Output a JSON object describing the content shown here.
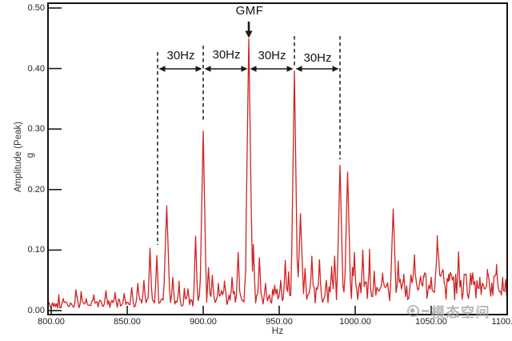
{
  "figure": {
    "axes": {
      "x": {
        "title": "Hz",
        "tick_labels": [
          "800.00",
          "850.00",
          "900.00",
          "950.00",
          "1000.00",
          "1050.00",
          "1100.00"
        ],
        "ticks_hz": [
          800,
          850,
          900,
          950,
          1000,
          1050,
          1100
        ],
        "min_hz": 798,
        "max_hz": 1100
      },
      "y": {
        "title": "Amplitude (Peak)",
        "unit": "g",
        "tick_labels": [
          "0.00",
          "0.10",
          "0.20",
          "0.30",
          "0.40",
          "0.50"
        ],
        "ticks": [
          0,
          0.1,
          0.2,
          0.3,
          0.4,
          0.5
        ],
        "min": 0,
        "max": 0.5
      }
    },
    "annotations": {
      "gmf_label": "GMF",
      "gmf_hz": 930,
      "sideband_hz": [
        870,
        900,
        960,
        990
      ],
      "spacing_labels": [
        "30Hz",
        "30Hz",
        "30Hz",
        "30Hz"
      ],
      "spacing_hz": 30
    },
    "watermark": {
      "text": "模态空间"
    },
    "colors": {
      "line": "#cf2323",
      "annotation": "#1a1a1a",
      "watermark": "#8c8c8c"
    }
  },
  "chart_data": {
    "type": "line",
    "title": "",
    "xlabel": "Hz",
    "ylabel": "Amplitude (Peak)",
    "y_unit": "g",
    "xlim": [
      798,
      1100
    ],
    "ylim": [
      0,
      0.5
    ],
    "grid": false,
    "legend": "none",
    "description": "Vibration spectrum: gear mesh frequency (GMF) peak at 930 Hz of 0.45 g with sideband peaks spaced 30 Hz apart (870, 900, 960, 990 Hz)",
    "gmf_hz": 930,
    "sideband_spacing_hz": 30,
    "peaks_hz_amplitude": [
      [
        808,
        0.02
      ],
      [
        817,
        0.024
      ],
      [
        823,
        0.02
      ],
      [
        828,
        0.026
      ],
      [
        836,
        0.033
      ],
      [
        842,
        0.03
      ],
      [
        848,
        0.028
      ],
      [
        853,
        0.038
      ],
      [
        857,
        0.045
      ],
      [
        861,
        0.05
      ],
      [
        865,
        0.103
      ],
      [
        869.5,
        0.091
      ],
      [
        876,
        0.173
      ],
      [
        880,
        0.055
      ],
      [
        884,
        0.04
      ],
      [
        890,
        0.036
      ],
      [
        895,
        0.123
      ],
      [
        900,
        0.297
      ],
      [
        903.5,
        0.071
      ],
      [
        906,
        0.058
      ],
      [
        910,
        0.045
      ],
      [
        914,
        0.049
      ],
      [
        919,
        0.055
      ],
      [
        923,
        0.096
      ],
      [
        928,
        0.071
      ],
      [
        930,
        0.449
      ],
      [
        933,
        0.109
      ],
      [
        937,
        0.087
      ],
      [
        941,
        0.045
      ],
      [
        947,
        0.042
      ],
      [
        951,
        0.05
      ],
      [
        954,
        0.083
      ],
      [
        960,
        0.396
      ],
      [
        964,
        0.16
      ],
      [
        967,
        0.07
      ],
      [
        971.5,
        0.09
      ],
      [
        976.5,
        0.084
      ],
      [
        981,
        0.05
      ],
      [
        984.5,
        0.073
      ],
      [
        986.5,
        0.09
      ],
      [
        990,
        0.24
      ],
      [
        995,
        0.229
      ],
      [
        999.5,
        0.096
      ],
      [
        1005,
        0.1
      ],
      [
        1009,
        0.06
      ],
      [
        1012.5,
        0.065
      ],
      [
        1018,
        0.062
      ],
      [
        1025,
        0.168
      ],
      [
        1028.5,
        0.07
      ],
      [
        1032,
        0.06
      ],
      [
        1039,
        0.092
      ],
      [
        1045,
        0.058
      ],
      [
        1050,
        0.055
      ],
      [
        1054,
        0.124
      ],
      [
        1058,
        0.065
      ],
      [
        1061.5,
        0.06
      ],
      [
        1068,
        0.097
      ],
      [
        1073,
        0.06
      ],
      [
        1077,
        0.058
      ],
      [
        1082,
        0.055
      ],
      [
        1087,
        0.068
      ],
      [
        1093,
        0.076
      ],
      [
        1097,
        0.055
      ]
    ],
    "noise_floor_hz_amplitude": [
      [
        798,
        0.009
      ],
      [
        850,
        0.012
      ],
      [
        880,
        0.014
      ],
      [
        900,
        0.016
      ],
      [
        930,
        0.02
      ],
      [
        960,
        0.024
      ],
      [
        990,
        0.028
      ],
      [
        1020,
        0.034
      ],
      [
        1050,
        0.04
      ],
      [
        1080,
        0.04
      ],
      [
        1100,
        0.036
      ]
    ]
  }
}
